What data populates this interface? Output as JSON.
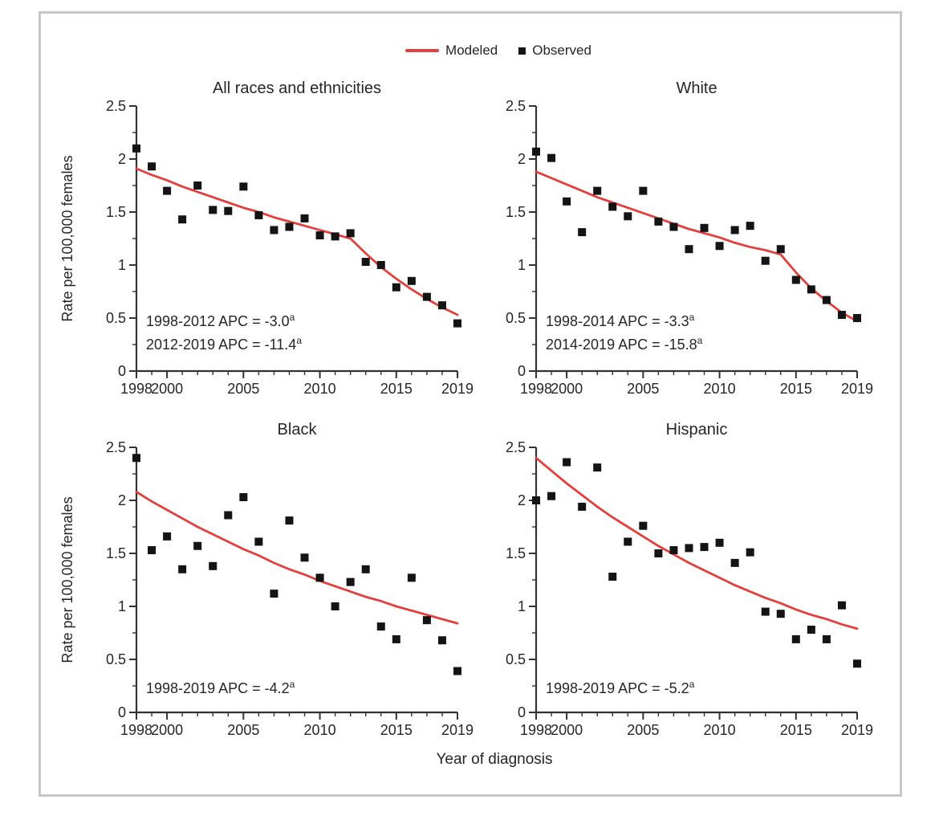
{
  "legend": {
    "modeled_label": "Modeled",
    "observed_label": "Observed"
  },
  "colors": {
    "modeled_line": "#e2403c",
    "observed_marker": "#141414",
    "axis": "#333333",
    "text": "#262626",
    "frame_border": "#c7c7c7"
  },
  "shared_axes": {
    "xlabel": "Year of diagnosis",
    "ylabel": "Rate per 100,000 females",
    "x_ticks_labeled": [
      1998,
      2000,
      2005,
      2010,
      2015,
      2019
    ],
    "y_ticks": [
      0,
      0.5,
      1,
      1.5,
      2,
      2.5
    ],
    "y_minor_ticks": [
      0.25,
      0.75,
      1.25,
      1.75,
      2.25
    ],
    "xlim": [
      1998,
      2019
    ],
    "ylim": [
      0,
      2.5
    ]
  },
  "chart_data": [
    {
      "type": "scatter+line",
      "title": "All races and ethnicities",
      "x": [
        1998,
        1999,
        2000,
        2001,
        2002,
        2003,
        2004,
        2005,
        2006,
        2007,
        2008,
        2009,
        2010,
        2011,
        2012,
        2013,
        2014,
        2015,
        2016,
        2017,
        2018,
        2019
      ],
      "series": [
        {
          "name": "Observed",
          "style": "scatter",
          "values": [
            2.1,
            1.93,
            1.7,
            1.43,
            1.75,
            1.52,
            1.51,
            1.74,
            1.47,
            1.33,
            1.36,
            1.44,
            1.28,
            1.27,
            1.3,
            1.03,
            1.0,
            0.79,
            0.85,
            0.7,
            0.62,
            0.45
          ]
        },
        {
          "name": "Modeled",
          "style": "line",
          "values": [
            1.91,
            1.85,
            1.8,
            1.74,
            1.69,
            1.64,
            1.59,
            1.54,
            1.5,
            1.45,
            1.41,
            1.37,
            1.33,
            1.29,
            1.25,
            1.11,
            0.98,
            0.87,
            0.77,
            0.68,
            0.6,
            0.53
          ]
        }
      ],
      "annotations": [
        {
          "text": "1998-2012 APC = -3.0",
          "sup": "a"
        },
        {
          "text": "2012-2019 APC = -11.4",
          "sup": "a"
        }
      ],
      "xlim": [
        1998,
        2019
      ],
      "ylim": [
        0,
        2.5
      ]
    },
    {
      "type": "scatter+line",
      "title": "White",
      "x": [
        1998,
        1999,
        2000,
        2001,
        2002,
        2003,
        2004,
        2005,
        2006,
        2007,
        2008,
        2009,
        2010,
        2011,
        2012,
        2013,
        2014,
        2015,
        2016,
        2017,
        2018,
        2019
      ],
      "series": [
        {
          "name": "Observed",
          "style": "scatter",
          "values": [
            2.07,
            2.01,
            1.6,
            1.31,
            1.7,
            1.55,
            1.46,
            1.7,
            1.41,
            1.36,
            1.15,
            1.35,
            1.18,
            1.33,
            1.37,
            1.04,
            1.15,
            0.86,
            0.77,
            0.67,
            0.53,
            0.5
          ]
        },
        {
          "name": "Modeled",
          "style": "line",
          "values": [
            1.88,
            1.82,
            1.76,
            1.7,
            1.64,
            1.59,
            1.54,
            1.49,
            1.44,
            1.39,
            1.34,
            1.3,
            1.26,
            1.21,
            1.17,
            1.14,
            1.1,
            0.93,
            0.78,
            0.66,
            0.55,
            0.47
          ]
        }
      ],
      "annotations": [
        {
          "text": "1998-2014 APC = -3.3",
          "sup": "a"
        },
        {
          "text": "2014-2019 APC = -15.8",
          "sup": "a"
        }
      ],
      "xlim": [
        1998,
        2019
      ],
      "ylim": [
        0,
        2.5
      ]
    },
    {
      "type": "scatter+line",
      "title": "Black",
      "x": [
        1998,
        1999,
        2000,
        2001,
        2002,
        2003,
        2004,
        2005,
        2006,
        2007,
        2008,
        2009,
        2010,
        2011,
        2012,
        2013,
        2014,
        2015,
        2016,
        2017,
        2018,
        2019
      ],
      "series": [
        {
          "name": "Observed",
          "style": "scatter",
          "values": [
            2.4,
            1.53,
            1.66,
            1.35,
            1.57,
            1.38,
            1.86,
            2.03,
            1.61,
            1.12,
            1.81,
            1.46,
            1.27,
            1.0,
            1.23,
            1.35,
            0.81,
            0.69,
            1.27,
            0.87,
            0.68,
            0.39
          ]
        },
        {
          "name": "Modeled",
          "style": "line",
          "values": [
            2.08,
            1.99,
            1.91,
            1.83,
            1.75,
            1.68,
            1.61,
            1.54,
            1.48,
            1.41,
            1.35,
            1.3,
            1.24,
            1.19,
            1.14,
            1.09,
            1.05,
            1.0,
            0.96,
            0.92,
            0.88,
            0.84
          ]
        }
      ],
      "annotations": [
        {
          "text": "1998-2019 APC = -4.2",
          "sup": "a"
        }
      ],
      "xlim": [
        1998,
        2019
      ],
      "ylim": [
        0,
        2.5
      ]
    },
    {
      "type": "scatter+line",
      "title": "Hispanic",
      "x": [
        1998,
        1999,
        2000,
        2001,
        2002,
        2003,
        2004,
        2005,
        2006,
        2007,
        2008,
        2009,
        2010,
        2011,
        2012,
        2013,
        2014,
        2015,
        2016,
        2017,
        2018,
        2019
      ],
      "series": [
        {
          "name": "Observed",
          "style": "scatter",
          "values": [
            2.0,
            2.04,
            2.36,
            1.94,
            2.31,
            1.28,
            1.61,
            1.76,
            1.5,
            1.53,
            1.55,
            1.56,
            1.6,
            1.41,
            1.51,
            0.95,
            0.93,
            0.69,
            0.78,
            0.69,
            1.01,
            0.46
          ]
        },
        {
          "name": "Modeled",
          "style": "line",
          "values": [
            2.4,
            2.28,
            2.16,
            2.05,
            1.94,
            1.84,
            1.75,
            1.66,
            1.57,
            1.49,
            1.41,
            1.34,
            1.27,
            1.2,
            1.14,
            1.08,
            1.03,
            0.97,
            0.92,
            0.88,
            0.83,
            0.79
          ]
        }
      ],
      "annotations": [
        {
          "text": "1998-2019 APC = -5.2",
          "sup": "a"
        }
      ],
      "xlim": [
        1998,
        2019
      ],
      "ylim": [
        0,
        2.5
      ]
    }
  ]
}
